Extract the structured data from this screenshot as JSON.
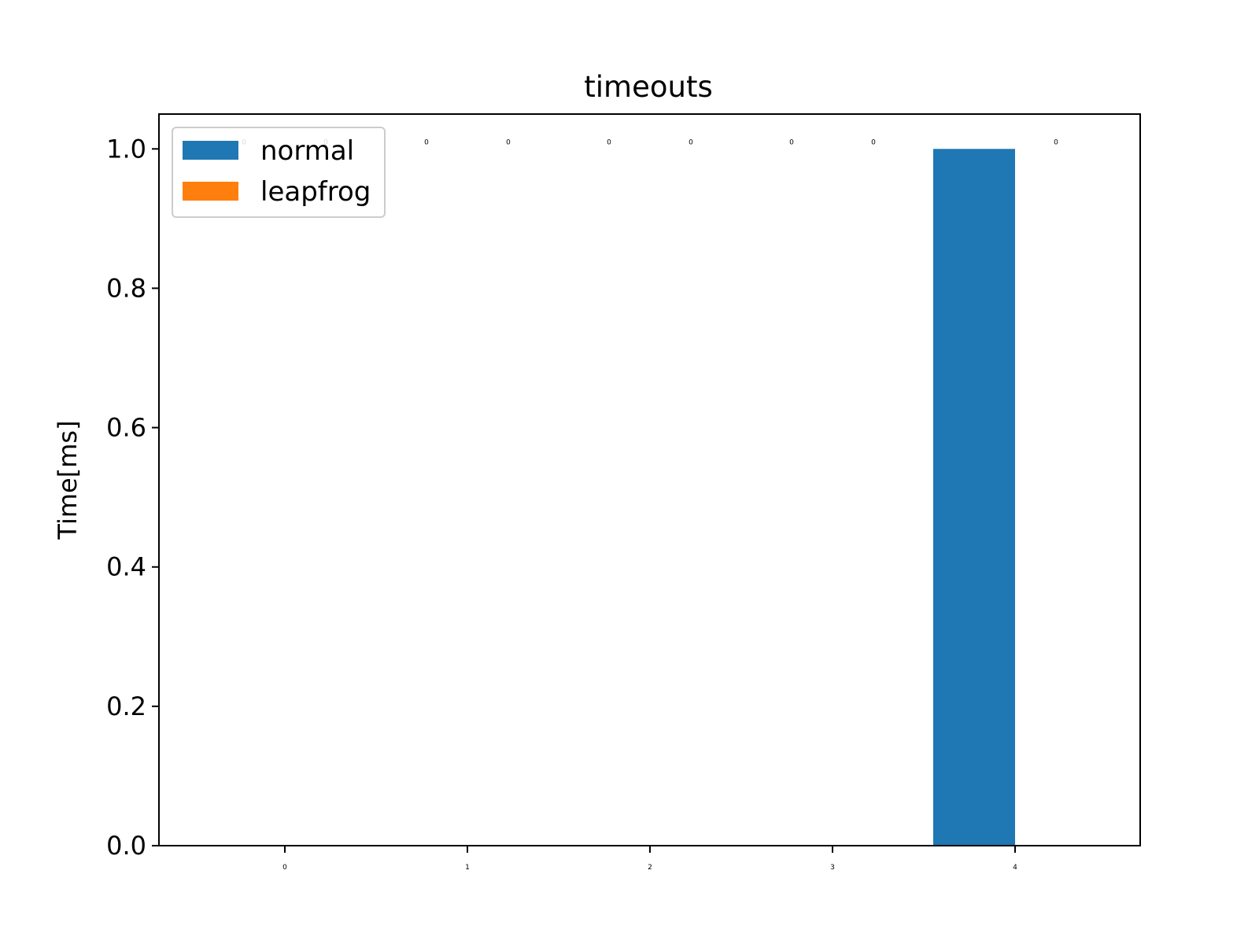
{
  "chart_data": {
    "type": "bar",
    "title": "timeouts",
    "xlabel": "",
    "ylabel": "Time[ms]",
    "categories": [
      "0",
      "1",
      "2",
      "3",
      "4"
    ],
    "ylim": [
      0,
      1.05
    ],
    "yticks": [
      "0.0",
      "0.2",
      "0.4",
      "0.6",
      "0.8",
      "1.0"
    ],
    "ytick_values": [
      0,
      0.2,
      0.4,
      0.6,
      0.8,
      1.0
    ],
    "legend_position": "upper-left",
    "series": [
      {
        "name": "normal",
        "color": "#1f77b4",
        "values": [
          0,
          0,
          0,
          0,
          1
        ],
        "labels": [
          "0",
          "0",
          "0",
          "0",
          ""
        ]
      },
      {
        "name": "leapfrog",
        "color": "#ff7f0e",
        "values": [
          0,
          0,
          0,
          0,
          0
        ],
        "labels": [
          "0",
          "0",
          "0",
          "0",
          "0"
        ]
      }
    ]
  }
}
